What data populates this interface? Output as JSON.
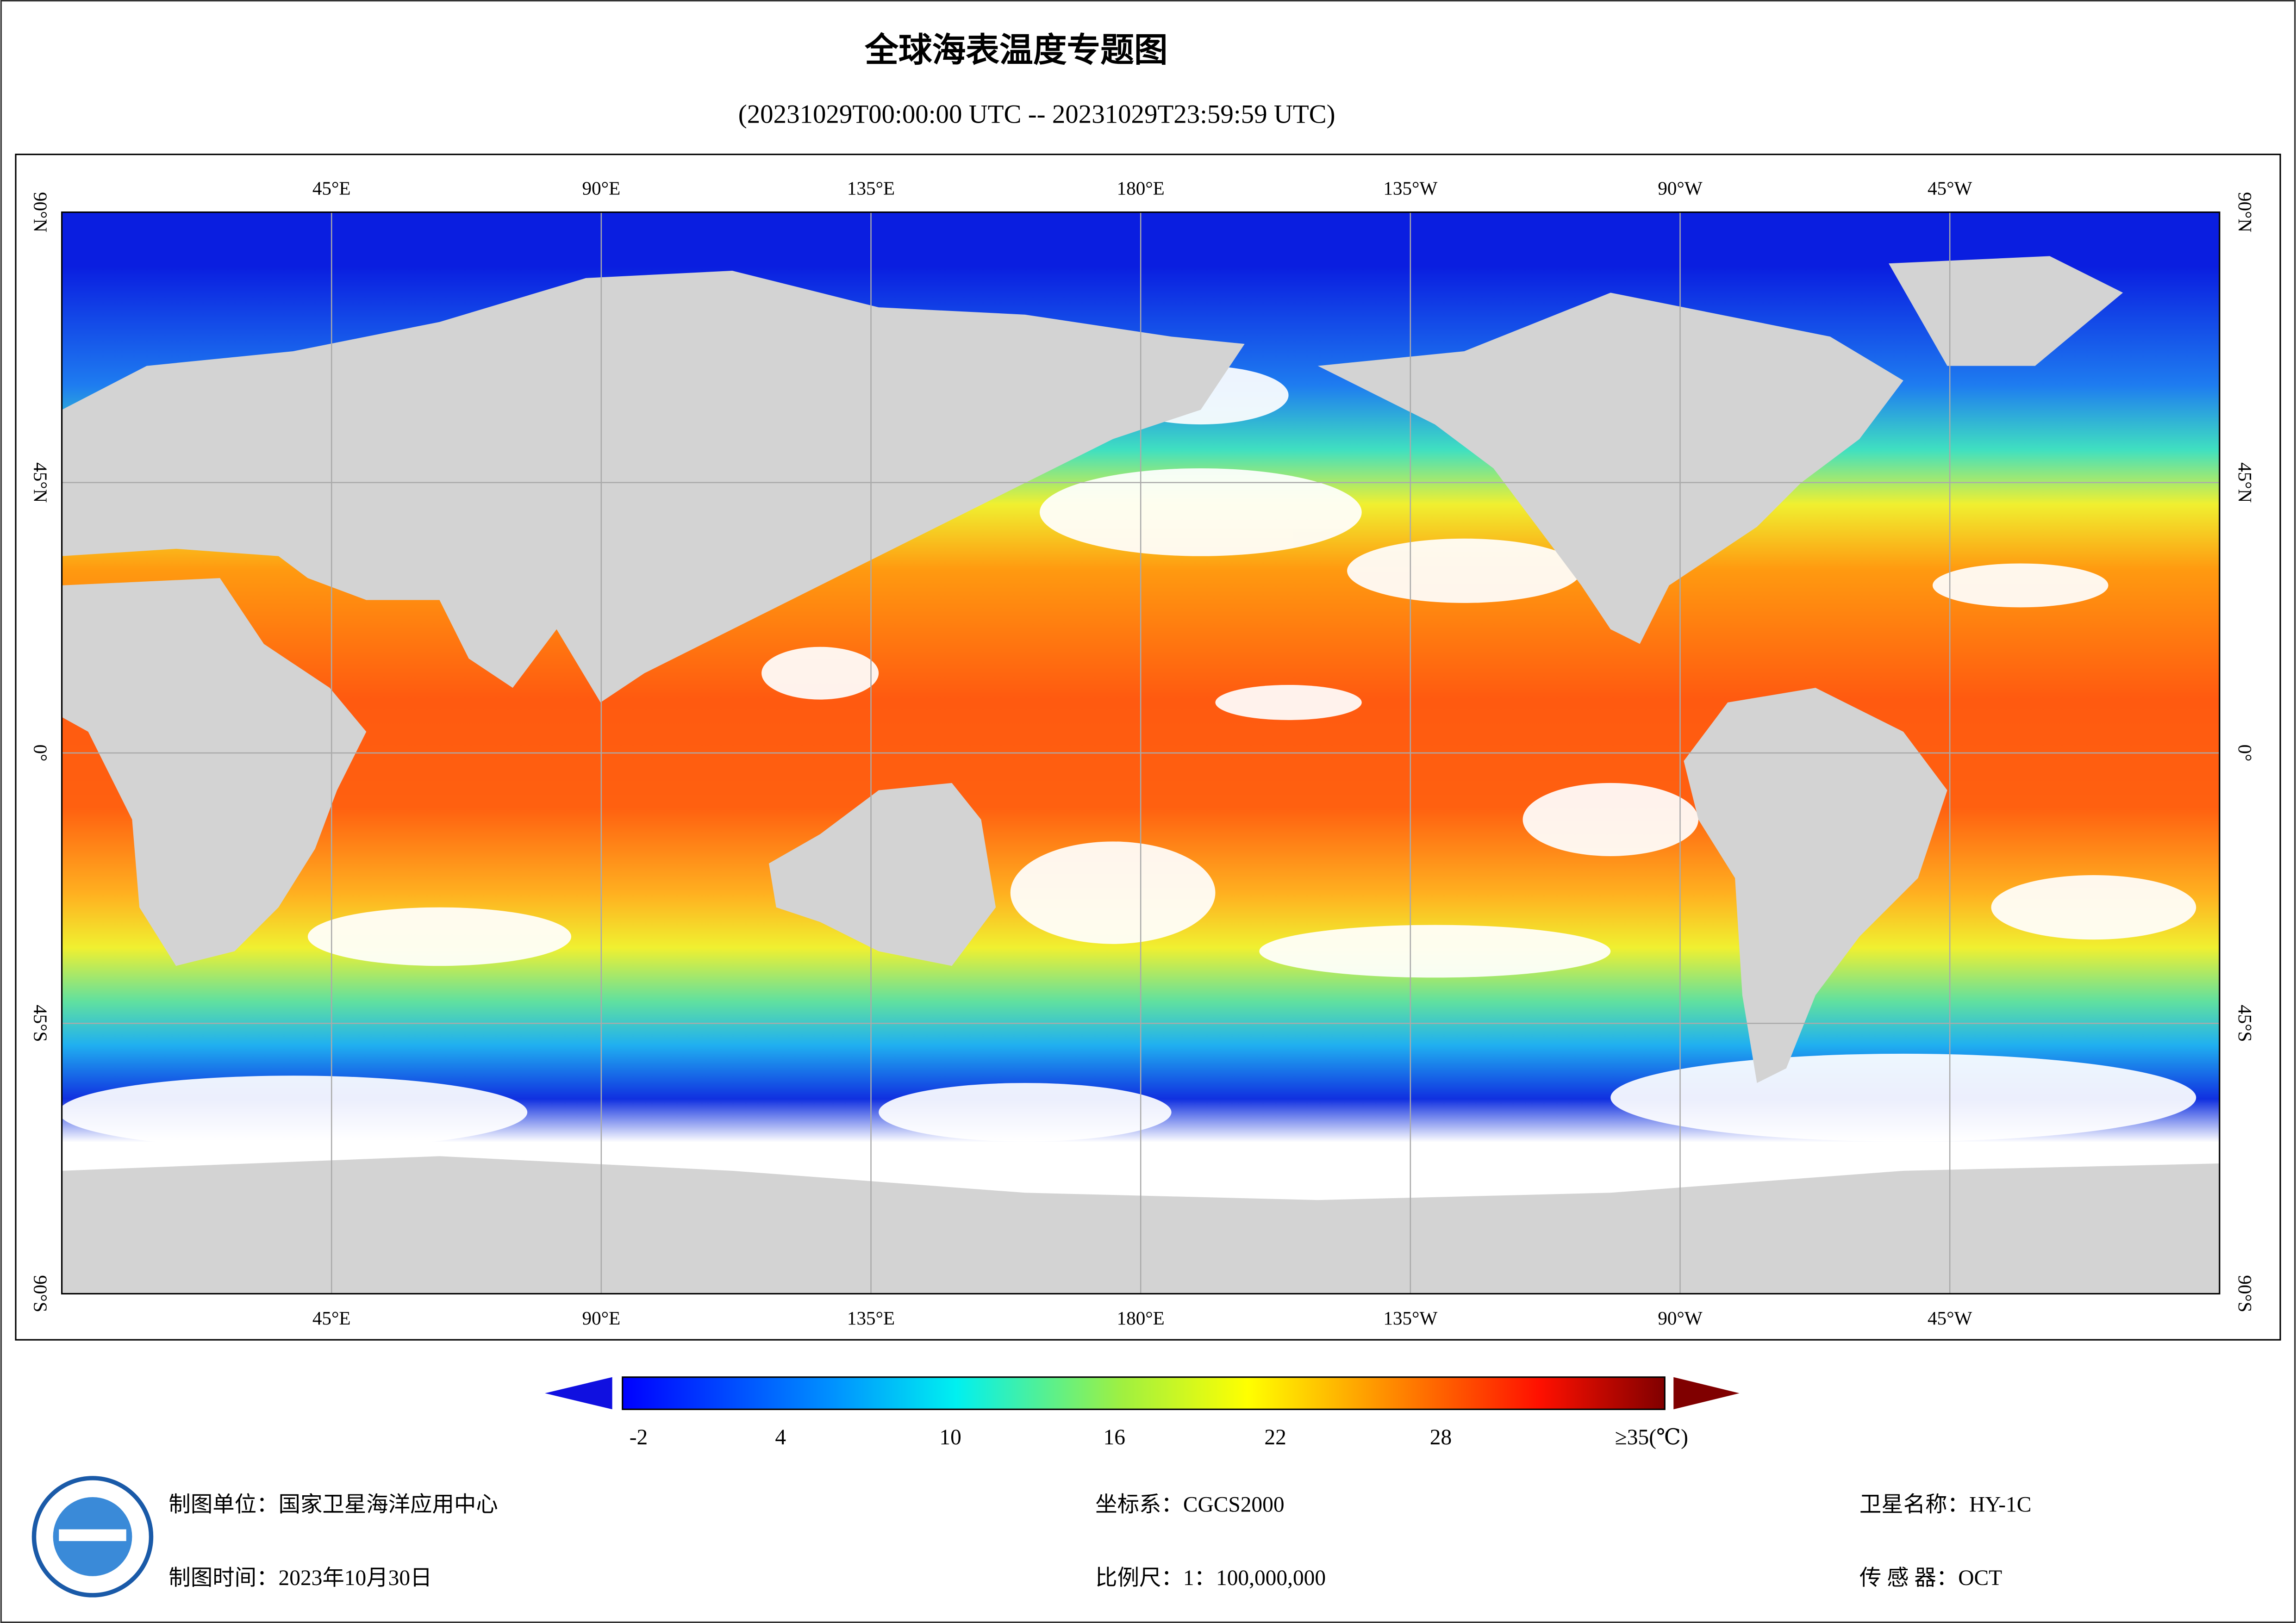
{
  "header": {
    "title": "全球海表温度专题图",
    "subtitle": "(20231029T00:00:00 UTC -- 20231029T23:59:59 UTC)"
  },
  "map": {
    "top_labels": [
      "45°E",
      "90°E",
      "135°E",
      "180°E",
      "135°W",
      "90°W",
      "45°W"
    ],
    "bottom_labels": [
      "45°E",
      "90°E",
      "135°E",
      "180°E",
      "135°W",
      "90°W",
      "45°W"
    ],
    "left_labels": [
      "90°N",
      "45°N",
      "0°",
      "45°S",
      "90°S"
    ],
    "right_labels": [
      "90°N",
      "45°N",
      "0°",
      "45°S",
      "90°S"
    ]
  },
  "colorbar": {
    "ticks": [
      "-2",
      "4",
      "10",
      "16",
      "22",
      "28",
      "≥35(℃)"
    ]
  },
  "footer": {
    "unit": "制图单位：国家卫星海洋应用中心",
    "time": "制图时间：2023年10月30日",
    "crs": "坐标系：CGCS2000",
    "scale": "比例尺：1：100,000,000",
    "satellite": "卫星名称：HY-1C",
    "sensor": "传 感 器：OCT"
  }
}
